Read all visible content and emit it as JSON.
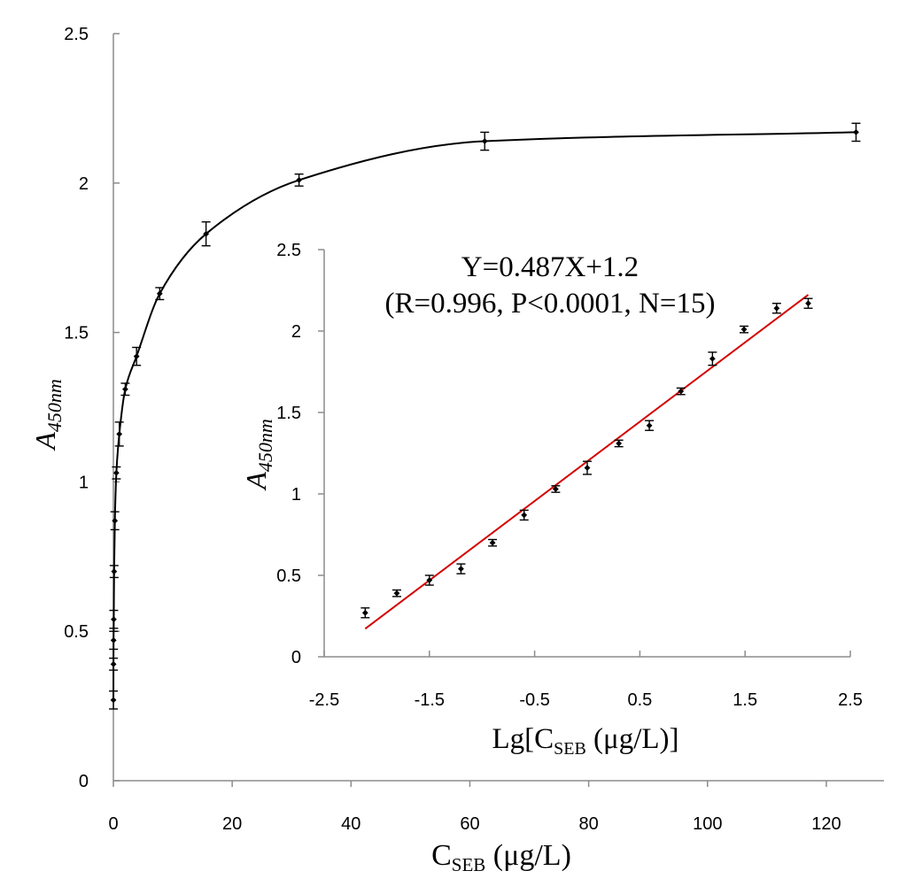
{
  "chart_data": [
    {
      "type": "scatter",
      "xlabel": {
        "main": "C",
        "sub": "SEB",
        "unit": " (μg/L)"
      },
      "ylabel": {
        "main": "A",
        "sub": "450nm"
      },
      "xlim": [
        0,
        130
      ],
      "ylim": [
        0,
        2.5
      ],
      "xticks": [
        0,
        20,
        40,
        60,
        80,
        100,
        120
      ],
      "xtick_labels": [
        "0",
        "20",
        "40",
        "60",
        "80",
        "100",
        "120"
      ],
      "yticks": [
        0,
        0.5,
        1,
        1.5,
        2,
        2.5
      ],
      "ytick_labels": [
        "0",
        "0.5",
        "1",
        "1.5",
        "2",
        "2.5"
      ],
      "grid": false,
      "series": [
        {
          "x": [
            0.0078,
            0.0156,
            0.0313,
            0.0625,
            0.125,
            0.25,
            0.5,
            1,
            2,
            3.9,
            7.8,
            15.6,
            31.25,
            62.5,
            125
          ],
          "y": [
            0.27,
            0.39,
            0.47,
            0.54,
            0.7,
            0.87,
            1.03,
            1.16,
            1.31,
            1.42,
            1.63,
            1.83,
            2.01,
            2.14,
            2.17
          ],
          "error": [
            0.03,
            0.02,
            0.03,
            0.03,
            0.02,
            0.03,
            0.02,
            0.04,
            0.02,
            0.03,
            0.02,
            0.04,
            0.02,
            0.03,
            0.03
          ]
        }
      ]
    },
    {
      "type": "scatter",
      "xlabel": {
        "main": "Lg[C",
        "sub": "SEB",
        "unit": " (μg/L)]"
      },
      "ylabel": {
        "main": "A",
        "sub": "450nm"
      },
      "xlim": [
        -2.5,
        2.5
      ],
      "ylim": [
        0,
        2.5
      ],
      "xticks": [
        -2.5,
        -1.5,
        -0.5,
        0.5,
        1.5,
        2.5
      ],
      "xtick_labels": [
        "-2.5",
        "-1.5",
        "-0.5",
        "0.5",
        "1.5",
        "2.5"
      ],
      "yticks": [
        0,
        0.5,
        1,
        1.5,
        2,
        2.5
      ],
      "ytick_labels": [
        "0",
        "0.5",
        "1",
        "1.5",
        "2",
        "2.5"
      ],
      "grid": false,
      "annotations": [
        "Y=0.487X+1.2",
        "(R=0.996, P<0.0001, N=15)"
      ],
      "fit": {
        "slope": 0.487,
        "intercept": 1.2,
        "x_range": [
          -2.11,
          2.1
        ]
      },
      "series": [
        {
          "x": [
            -2.11,
            -1.81,
            -1.5,
            -1.2,
            -0.9,
            -0.6,
            -0.3,
            0,
            0.3,
            0.59,
            0.89,
            1.19,
            1.49,
            1.8,
            2.1
          ],
          "y": [
            0.27,
            0.39,
            0.47,
            0.54,
            0.7,
            0.87,
            1.03,
            1.16,
            1.31,
            1.42,
            1.63,
            1.83,
            2.01,
            2.14,
            2.17
          ],
          "error": [
            0.03,
            0.02,
            0.03,
            0.03,
            0.02,
            0.03,
            0.02,
            0.04,
            0.02,
            0.03,
            0.02,
            0.04,
            0.02,
            0.03,
            0.03
          ]
        }
      ]
    }
  ]
}
